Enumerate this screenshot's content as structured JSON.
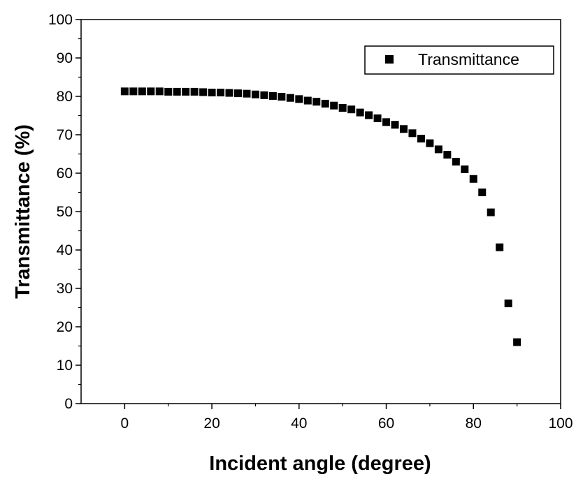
{
  "chart_data": {
    "type": "scatter",
    "title": "",
    "xlabel": "Incident angle (degree)",
    "ylabel": "Transmittance (%)",
    "xlim": [
      -10,
      100
    ],
    "ylim": [
      0,
      100
    ],
    "x_ticks": [
      0,
      20,
      40,
      60,
      80,
      100
    ],
    "y_ticks": [
      0,
      10,
      20,
      30,
      40,
      50,
      60,
      70,
      80,
      90,
      100
    ],
    "grid": false,
    "legend": {
      "position": "top-right"
    },
    "marker": "square",
    "marker_color": "#000000",
    "series": [
      {
        "name": "Transmittance",
        "x": [
          0,
          2,
          4,
          6,
          8,
          10,
          12,
          14,
          16,
          18,
          20,
          22,
          24,
          26,
          28,
          30,
          32,
          34,
          36,
          38,
          40,
          42,
          44,
          46,
          48,
          50,
          52,
          54,
          56,
          58,
          60,
          62,
          64,
          66,
          68,
          70,
          72,
          74,
          76,
          78,
          80,
          82,
          84,
          86,
          88,
          90
        ],
        "y": [
          81.3,
          81.3,
          81.3,
          81.3,
          81.3,
          81.2,
          81.2,
          81.2,
          81.2,
          81.1,
          81.0,
          81.0,
          80.9,
          80.8,
          80.7,
          80.5,
          80.3,
          80.1,
          79.9,
          79.6,
          79.3,
          78.9,
          78.6,
          78.1,
          77.6,
          77.0,
          76.6,
          75.8,
          75.1,
          74.3,
          73.3,
          72.6,
          71.5,
          70.4,
          69.0,
          67.8,
          66.2,
          64.8,
          63.0,
          61.0,
          58.5,
          55.0,
          49.8,
          40.7,
          26.1,
          16.0
        ]
      }
    ]
  }
}
